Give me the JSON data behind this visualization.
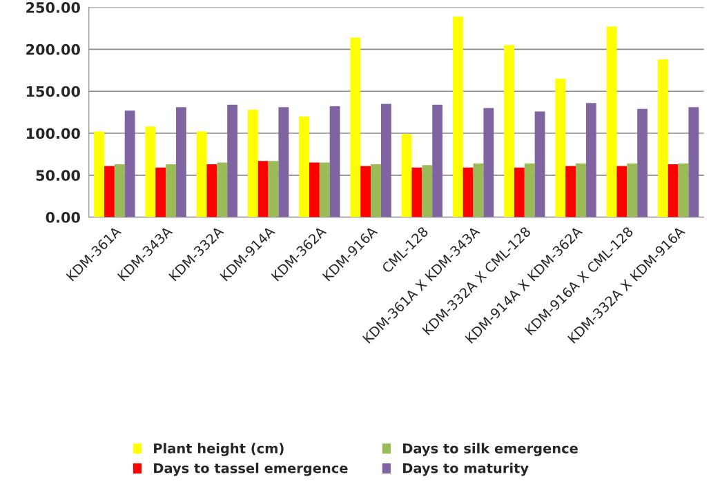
{
  "chart_data": {
    "type": "bar",
    "categories": [
      "KDM-361A",
      "KDM-343A",
      "KDM-332A",
      "KDM-914A",
      "KDM-362A",
      "KDM-916A",
      "CML-128",
      "KDM-361A X KDM-343A",
      "KDM-332A X CML-128",
      "KDM-914A X KDM-362A",
      "KDM-916A X CML-128",
      "KDM-332A X KDM-916A"
    ],
    "series": [
      {
        "name": "Plant height (cm)",
        "color": "#ffff00",
        "values": [
          102,
          108,
          102,
          128,
          120,
          214,
          99,
          239,
          205,
          165,
          227,
          188
        ]
      },
      {
        "name": "Days to tassel emergence",
        "color": "#ff0000",
        "values": [
          61,
          59,
          63,
          67,
          65,
          61,
          59,
          59,
          59,
          61,
          61,
          63
        ]
      },
      {
        "name": "Days to silk emergence",
        "color": "#9bbb59",
        "values": [
          63,
          63,
          65,
          67,
          65,
          63,
          62,
          64,
          64,
          64,
          64,
          64
        ]
      },
      {
        "name": "Days to maturity",
        "color": "#8064a2",
        "values": [
          127,
          131,
          134,
          131,
          132,
          135,
          134,
          130,
          126,
          136,
          129,
          131
        ]
      }
    ],
    "ylim": [
      0,
      250
    ],
    "yticks": [
      {
        "value": 0,
        "label": "0.00"
      },
      {
        "value": 50,
        "label": "50.00"
      },
      {
        "value": 100,
        "label": "100.00"
      },
      {
        "value": 150,
        "label": "150.00"
      },
      {
        "value": 200,
        "label": "200.00"
      },
      {
        "value": 250,
        "label": "250.00"
      }
    ],
    "grid": "y",
    "legend": "bottom"
  }
}
